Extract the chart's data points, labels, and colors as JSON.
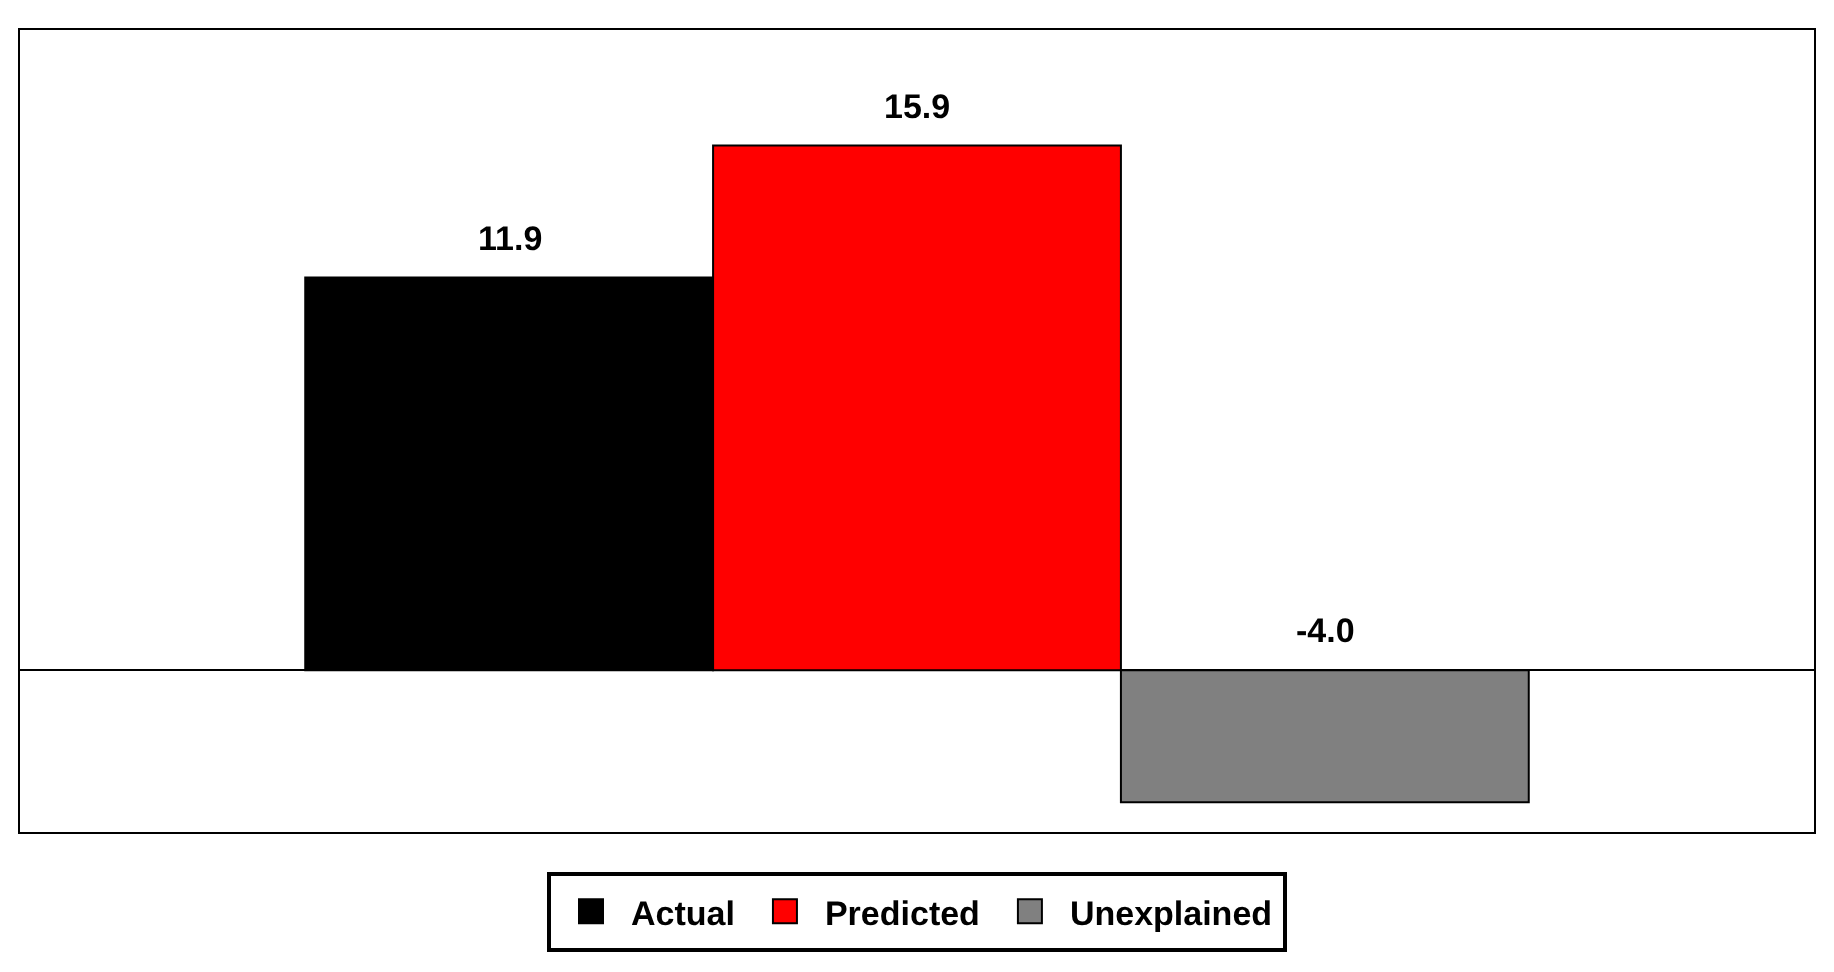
{
  "chart_data": {
    "type": "bar",
    "categories": [
      null
    ],
    "series": [
      {
        "name": "Actual",
        "color": "#000000",
        "values": [
          11.9
        ],
        "value_labels": [
          "11.9"
        ]
      },
      {
        "name": "Predicted",
        "color": "#ff0000",
        "values": [
          15.9
        ],
        "value_labels": [
          "15.9"
        ]
      },
      {
        "name": "Unexplained",
        "color": "#808080",
        "values": [
          -4.0
        ],
        "value_labels": [
          "-4.0"
        ]
      }
    ],
    "ylim": [
      -4.9,
      19.4
    ],
    "legend": "bottom"
  }
}
